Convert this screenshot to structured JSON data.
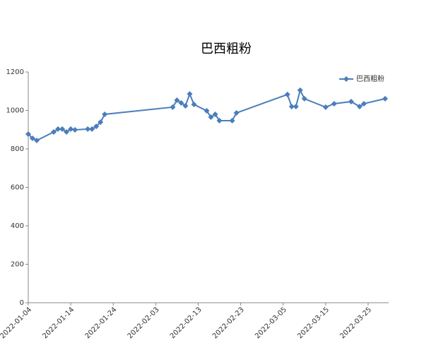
{
  "chart_data": {
    "type": "line",
    "title": "巴西粗粉",
    "x": [
      "2022-01-04",
      "2022-01-05",
      "2022-01-06",
      "2022-01-10",
      "2022-01-11",
      "2022-01-12",
      "2022-01-13",
      "2022-01-14",
      "2022-01-15",
      "2022-01-18",
      "2022-01-19",
      "2022-01-20",
      "2022-01-21",
      "2022-01-22",
      "2022-02-07",
      "2022-02-08",
      "2022-02-09",
      "2022-02-10",
      "2022-02-11",
      "2022-02-12",
      "2022-02-15",
      "2022-02-16",
      "2022-02-17",
      "2022-02-18",
      "2022-02-21",
      "2022-02-22",
      "2022-03-06",
      "2022-03-07",
      "2022-03-08",
      "2022-03-09",
      "2022-03-10",
      "2022-03-15",
      "2022-03-17",
      "2022-03-21",
      "2022-03-23",
      "2022-03-24",
      "2022-03-29"
    ],
    "series": [
      {
        "name": "巴西粗粉",
        "color": "#4a7ebb",
        "values": [
          877,
          855,
          844,
          888,
          903,
          903,
          888,
          903,
          899,
          903,
          903,
          917,
          939,
          980,
          1017,
          1053,
          1039,
          1024,
          1086,
          1031,
          998,
          965,
          980,
          947,
          947,
          987,
          1083,
          1020,
          1020,
          1105,
          1061,
          1017,
          1035,
          1046,
          1020,
          1035,
          1061
        ]
      }
    ],
    "xlim": [
      "2022-01-04",
      "2022-03-29"
    ],
    "xticks": [
      "2022-01-04",
      "2022-01-14",
      "2022-01-24",
      "2022-02-03",
      "2022-02-13",
      "2022-02-23",
      "2022-03-05",
      "2022-03-15",
      "2022-03-25"
    ],
    "ylim": [
      0,
      1200
    ],
    "yticks": [
      0,
      200,
      400,
      600,
      800,
      1000,
      1200
    ],
    "grid": false,
    "legend": "top-right"
  }
}
